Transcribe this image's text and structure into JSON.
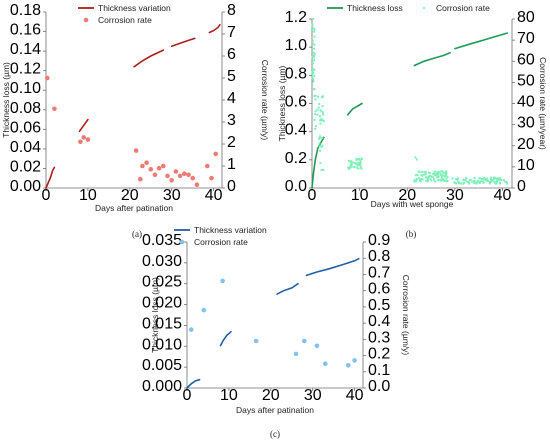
{
  "chart_data": [
    {
      "type": "line+scatter",
      "panel_label": "(a)",
      "xlabel": "Days after patination",
      "ylabel_left": "Thickness loss (µm)",
      "ylabel_right": "Corrosion rate (µm/y)",
      "xlim": [
        0,
        42
      ],
      "xticks": [
        0,
        10,
        20,
        30,
        40
      ],
      "ylim_left": [
        0,
        0.18
      ],
      "yticks_left": [
        0,
        0.02,
        0.04,
        0.06,
        0.08,
        0.1,
        0.12,
        0.14,
        0.16,
        0.18
      ],
      "ylim_right": [
        0,
        8
      ],
      "yticks_right": [
        0,
        1,
        2,
        3,
        4,
        5,
        6,
        7,
        8
      ],
      "legend_position": "top",
      "colors": {
        "line": "#b01c1c",
        "points": "#ef7a72"
      },
      "series": [
        {
          "name": "Thickness variation",
          "kind": "line",
          "axis": "left",
          "segments": [
            [
              [
                0,
                0.0
              ],
              [
                0.5,
                0.005
              ],
              [
                1,
                0.01
              ],
              [
                1.6,
                0.018
              ],
              [
                2,
                0.021
              ]
            ],
            [
              [
                8,
                0.058
              ],
              [
                8.5,
                0.061
              ],
              [
                9,
                0.064
              ],
              [
                9.5,
                0.067
              ],
              [
                10,
                0.07
              ]
            ],
            [
              [
                21,
                0.124
              ],
              [
                23,
                0.13
              ],
              [
                25,
                0.135
              ],
              [
                27,
                0.139
              ],
              [
                28,
                0.141
              ]
            ],
            [
              [
                30,
                0.145
              ],
              [
                32,
                0.148
              ],
              [
                34,
                0.151
              ],
              [
                35.5,
                0.153
              ]
            ],
            [
              [
                39,
                0.159
              ],
              [
                40,
                0.161
              ],
              [
                41,
                0.164
              ],
              [
                41.5,
                0.167
              ]
            ]
          ]
        },
        {
          "name": "Corrosion rate",
          "kind": "scatter",
          "axis": "right",
          "points": [
            [
              0.3,
              5.0
            ],
            [
              2,
              3.6
            ],
            [
              8.2,
              2.1
            ],
            [
              9,
              2.3
            ],
            [
              10,
              2.2
            ],
            [
              21.5,
              1.7
            ],
            [
              22.5,
              0.4
            ],
            [
              23,
              1.0
            ],
            [
              24,
              1.15
            ],
            [
              25,
              0.85
            ],
            [
              26,
              0.6
            ],
            [
              27,
              0.9
            ],
            [
              28,
              1.0
            ],
            [
              29,
              0.55
            ],
            [
              30,
              0.35
            ],
            [
              31,
              0.75
            ],
            [
              32,
              0.55
            ],
            [
              33,
              0.65
            ],
            [
              34,
              0.6
            ],
            [
              35,
              0.45
            ],
            [
              36,
              0.15
            ],
            [
              38.5,
              1.0
            ],
            [
              39.5,
              0.45
            ],
            [
              40.5,
              1.55
            ]
          ]
        }
      ]
    },
    {
      "type": "line+scatter",
      "panel_label": "(b)",
      "xlabel": "Days with wet sponge",
      "ylabel_left": "Thickness loss (µm)",
      "ylabel_right": "Corrosion rate (µm/year)",
      "xlim": [
        0,
        42
      ],
      "xticks": [
        0,
        10,
        20,
        30,
        40
      ],
      "ylim_left": [
        0,
        1.2
      ],
      "yticks_left": [
        0,
        0.2,
        0.4,
        0.6,
        0.8,
        1.0,
        1.2
      ],
      "ylim_right": [
        0,
        80
      ],
      "yticks_right": [
        0,
        10,
        20,
        30,
        40,
        50,
        60,
        70,
        80
      ],
      "legend_position": "top",
      "colors": {
        "line": "#1e9a56",
        "points": "#7ef0b8"
      },
      "series": [
        {
          "name": "Thickness loss",
          "kind": "line",
          "axis": "left",
          "segments": [
            [
              [
                0,
                0.0
              ],
              [
                0.3,
                0.1
              ],
              [
                0.7,
                0.2
              ],
              [
                1.2,
                0.28
              ],
              [
                2,
                0.33
              ],
              [
                2.5,
                0.36
              ]
            ],
            [
              [
                7.5,
                0.52
              ],
              [
                8.5,
                0.56
              ],
              [
                9.5,
                0.58
              ],
              [
                10.5,
                0.6
              ]
            ],
            [
              [
                21.5,
                0.87
              ],
              [
                23.5,
                0.9
              ],
              [
                25.5,
                0.92
              ],
              [
                27.5,
                0.94
              ],
              [
                29,
                0.96
              ]
            ],
            [
              [
                30,
                0.99
              ],
              [
                33,
                1.02
              ],
              [
                36,
                1.05
              ],
              [
                39,
                1.08
              ],
              [
                41,
                1.1
              ]
            ]
          ]
        },
        {
          "name": "Corrosion rate",
          "kind": "scatter-dense",
          "axis": "right",
          "clusters": [
            {
              "x_range": [
                0,
                0.6
              ],
              "y_range": [
                45,
                78
              ],
              "count": 30
            },
            {
              "x_range": [
                0.5,
                2.5
              ],
              "y_range": [
                28,
                45
              ],
              "count": 30
            },
            {
              "x_range": [
                1.5,
                2.5
              ],
              "y_range": [
                8,
                25
              ],
              "count": 12
            },
            {
              "x_range": [
                7.5,
                10.5
              ],
              "y_range": [
                9,
                14
              ],
              "count": 40
            },
            {
              "x_range": [
                21.5,
                28.5
              ],
              "y_range": [
                3,
                8
              ],
              "count": 90
            },
            {
              "x_range": [
                29.5,
                41
              ],
              "y_range": [
                2,
                5
              ],
              "count": 90
            }
          ],
          "points": [
            [
              21.7,
              14.5
            ],
            [
              22.0,
              13.5
            ],
            [
              0.2,
              80
            ],
            [
              0.1,
              77
            ]
          ]
        }
      ]
    },
    {
      "type": "line+scatter",
      "panel_label": "(c)",
      "xlabel": "Days after patination",
      "ylabel_left": "Thickness loss (µm)",
      "ylabel_right": "Corrosion rate (µm/y)",
      "xlim": [
        0,
        42
      ],
      "xticks": [
        0,
        10,
        20,
        30,
        40
      ],
      "ylim_left": [
        0,
        0.035
      ],
      "yticks_left": [
        0,
        0.005,
        0.01,
        0.015,
        0.02,
        0.025,
        0.03,
        0.035
      ],
      "ylim_right": [
        0,
        0.9
      ],
      "yticks_right": [
        0,
        0.1,
        0.2,
        0.3,
        0.4,
        0.5,
        0.6,
        0.7,
        0.8,
        0.9
      ],
      "legend_position": "top",
      "colors": {
        "line": "#1f5fa8",
        "points": "#7fc3ea"
      },
      "series": [
        {
          "name": "Thickness variation",
          "kind": "line",
          "axis": "left",
          "segments": [
            [
              [
                0,
                0.0
              ],
              [
                1,
                0.001
              ],
              [
                2,
                0.0017
              ],
              [
                3,
                0.002
              ]
            ],
            [
              [
                8,
                0.0102
              ],
              [
                8.7,
                0.0115
              ],
              [
                9.5,
                0.0126
              ],
              [
                10.5,
                0.0135
              ]
            ],
            [
              [
                21.5,
                0.0225
              ],
              [
                23,
                0.0233
              ],
              [
                25,
                0.024
              ],
              [
                26.5,
                0.025
              ]
            ],
            [
              [
                28.5,
                0.027
              ],
              [
                31,
                0.0278
              ],
              [
                34,
                0.0286
              ],
              [
                37,
                0.0295
              ],
              [
                40,
                0.0305
              ],
              [
                41,
                0.031
              ]
            ]
          ]
        },
        {
          "name": "Corrosion rate",
          "kind": "scatter",
          "axis": "right",
          "points": [
            [
              1,
              0.36
            ],
            [
              4,
              0.48
            ],
            [
              8.5,
              0.66
            ],
            [
              16.5,
              0.29
            ],
            [
              26,
              0.21
            ],
            [
              28,
              0.29
            ],
            [
              31,
              0.26
            ],
            [
              33,
              0.15
            ],
            [
              38.5,
              0.14
            ],
            [
              40,
              0.17
            ]
          ]
        }
      ]
    }
  ]
}
